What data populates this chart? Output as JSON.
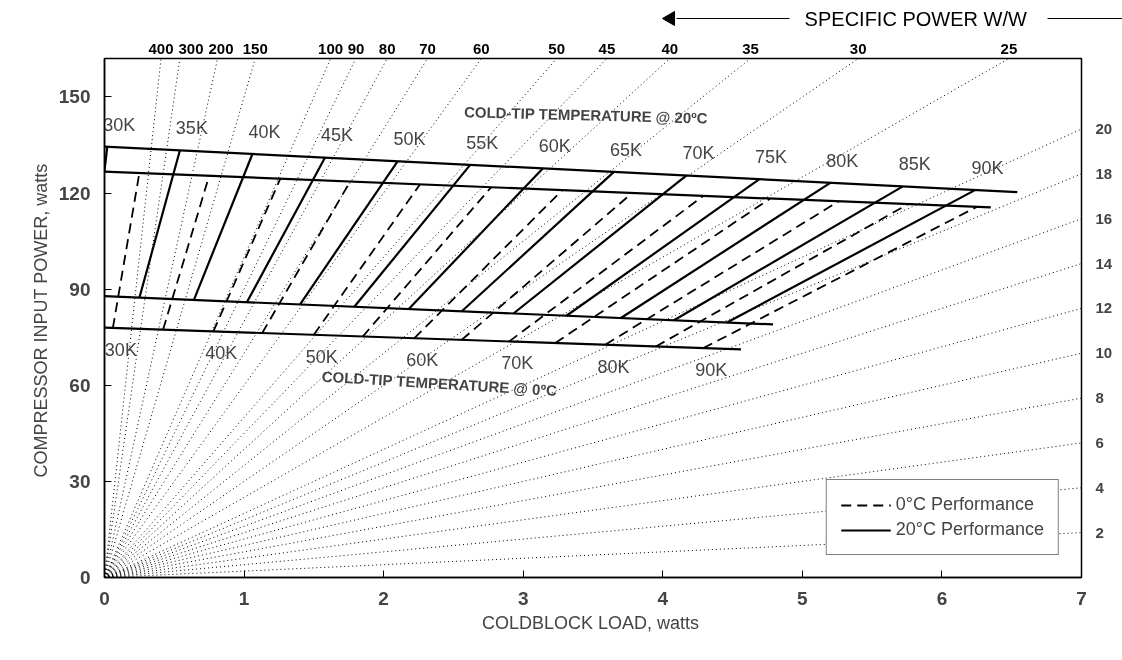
{
  "chart_data": {
    "type": "line",
    "xlabel": "COLDBLOCK LOAD,  watts",
    "ylabel": "COMPRESSOR INPUT POWER,  watts",
    "xlim": [
      0,
      7
    ],
    "ylim": [
      0,
      162
    ],
    "xticks": [
      0,
      1,
      2,
      3,
      4,
      5,
      6,
      7
    ],
    "yticks": [
      0,
      30,
      60,
      90,
      120,
      150
    ],
    "grid": false,
    "legend": "bottom right",
    "series": [
      {
        "color": "#000000",
        "line_style": "dotted",
        "x": [
          0,
          0.405
        ],
        "values": [
          0,
          162
        ]
      },
      {
        "color": "#000000",
        "line_style": "dotted",
        "x": [
          0,
          0.54
        ],
        "values": [
          0,
          162
        ]
      },
      {
        "color": "#000000",
        "line_style": "dotted",
        "x": [
          0,
          0.81
        ],
        "values": [
          0,
          162
        ]
      },
      {
        "color": "#000000",
        "line_style": "dotted",
        "x": [
          0,
          1.08
        ],
        "values": [
          0,
          162
        ]
      },
      {
        "color": "#000000",
        "line_style": "dotted",
        "x": [
          0,
          1.62
        ],
        "values": [
          0,
          162
        ]
      },
      {
        "color": "#000000",
        "line_style": "dotted",
        "x": [
          0,
          1.8
        ],
        "values": [
          0,
          162
        ]
      },
      {
        "color": "#000000",
        "line_style": "dotted",
        "x": [
          0,
          2.025
        ],
        "values": [
          0,
          162
        ]
      },
      {
        "color": "#000000",
        "line_style": "dotted",
        "x": [
          0,
          2.314
        ],
        "values": [
          0,
          162
        ]
      },
      {
        "color": "#000000",
        "line_style": "dotted",
        "x": [
          0,
          2.7
        ],
        "values": [
          0,
          162
        ]
      },
      {
        "color": "#000000",
        "line_style": "dotted",
        "x": [
          0,
          3.24
        ],
        "values": [
          0,
          162
        ]
      },
      {
        "color": "#000000",
        "line_style": "dotted",
        "x": [
          0,
          3.6
        ],
        "values": [
          0,
          162
        ]
      },
      {
        "color": "#000000",
        "line_style": "dotted",
        "x": [
          0,
          4.05
        ],
        "values": [
          0,
          162
        ]
      },
      {
        "color": "#000000",
        "line_style": "dotted",
        "x": [
          0,
          4.629
        ],
        "values": [
          0,
          162
        ]
      },
      {
        "color": "#000000",
        "line_style": "dotted",
        "x": [
          0,
          5.4
        ],
        "values": [
          0,
          162
        ]
      },
      {
        "color": "#000000",
        "line_style": "dotted",
        "x": [
          0,
          6.48
        ],
        "values": [
          0,
          162
        ]
      },
      {
        "color": "#000000",
        "line_style": "dotted",
        "x": [
          0,
          7
        ],
        "values": [
          0,
          140
        ]
      },
      {
        "color": "#000000",
        "line_style": "dotted",
        "x": [
          0,
          7
        ],
        "values": [
          0,
          126
        ]
      },
      {
        "color": "#000000",
        "line_style": "dotted",
        "x": [
          0,
          7
        ],
        "values": [
          0,
          112
        ]
      },
      {
        "color": "#000000",
        "line_style": "dotted",
        "x": [
          0,
          7
        ],
        "values": [
          0,
          98
        ]
      },
      {
        "color": "#000000",
        "line_style": "dotted",
        "x": [
          0,
          7
        ],
        "values": [
          0,
          84
        ]
      },
      {
        "color": "#000000",
        "line_style": "dotted",
        "x": [
          0,
          7
        ],
        "values": [
          0,
          70
        ]
      },
      {
        "color": "#000000",
        "line_style": "dotted",
        "x": [
          0,
          7
        ],
        "values": [
          0,
          56
        ]
      },
      {
        "color": "#000000",
        "line_style": "dotted",
        "x": [
          0,
          7
        ],
        "values": [
          0,
          42
        ]
      },
      {
        "color": "#000000",
        "line_style": "dotted",
        "x": [
          0,
          7
        ],
        "values": [
          0,
          28
        ]
      },
      {
        "color": "#000000",
        "line_style": "dotted",
        "x": [
          0,
          7
        ],
        "values": [
          0,
          14
        ]
      },
      {
        "color": "#000000",
        "line_style": "solid",
        "x": [
          0,
          6.54
        ],
        "values": [
          134.5,
          120.3
        ]
      },
      {
        "color": "#000000",
        "line_style": "solid",
        "x": [
          0,
          4.79
        ],
        "values": [
          87.8,
          79.0
        ]
      },
      {
        "color": "#000000",
        "line_style": "solid",
        "x": [
          0,
          6.35
        ],
        "values": [
          126.7,
          115.5
        ]
      },
      {
        "color": "#000000",
        "line_style": "solid",
        "x": [
          0,
          4.56
        ],
        "values": [
          78.0,
          71.2
        ]
      },
      {
        "name": "0°C Performance",
        "color": "#000000",
        "line_style": "dashed",
        "x": [
          0.06,
          0.25
        ],
        "values": [
          77.9,
          126.3
        ]
      },
      {
        "color": "#000000",
        "line_style": "dashed",
        "x": [
          0.42,
          0.75
        ],
        "values": [
          77.4,
          125.4
        ]
      },
      {
        "color": "#000000",
        "line_style": "dashed",
        "x": [
          0.78,
          1.26
        ],
        "values": [
          76.8,
          124.5
        ]
      },
      {
        "color": "#000000",
        "line_style": "dashed",
        "x": [
          1.13,
          1.76
        ],
        "values": [
          76.3,
          123.6
        ]
      },
      {
        "color": "#000000",
        "line_style": "dashed",
        "x": [
          1.5,
          2.26
        ],
        "values": [
          75.8,
          122.7
        ]
      },
      {
        "color": "#000000",
        "line_style": "dashed",
        "x": [
          1.85,
          2.77
        ],
        "values": [
          75.2,
          121.8
        ]
      },
      {
        "color": "#000000",
        "line_style": "dashed",
        "x": [
          2.22,
          3.28
        ],
        "values": [
          74.7,
          120.9
        ]
      },
      {
        "color": "#000000",
        "line_style": "dashed",
        "x": [
          2.56,
          3.78
        ],
        "values": [
          74.2,
          120.0
        ]
      },
      {
        "color": "#000000",
        "line_style": "dashed",
        "x": [
          2.9,
          4.29
        ],
        "values": [
          73.7,
          119.1
        ]
      },
      {
        "color": "#000000",
        "line_style": "dashed",
        "x": [
          3.23,
          4.77
        ],
        "values": [
          73.2,
          118.3
        ]
      },
      {
        "color": "#000000",
        "line_style": "dashed",
        "x": [
          3.59,
          5.26
        ],
        "values": [
          72.7,
          117.4
        ]
      },
      {
        "color": "#000000",
        "line_style": "dashed",
        "x": [
          3.95,
          5.76
        ],
        "values": [
          72.1,
          116.6
        ]
      },
      {
        "color": "#000000",
        "line_style": "dashed",
        "x": [
          4.29,
          6.25
        ],
        "values": [
          71.6,
          115.7
        ]
      },
      {
        "name": "20°C Performance",
        "color": "#000000",
        "line_style": "solid",
        "x": [
          0.0,
          0.02
        ],
        "values": [
          127.0,
          134.5
        ]
      },
      {
        "color": "#000000",
        "line_style": "solid",
        "x": [
          0.25,
          0.54
        ],
        "values": [
          87.3,
          133.3
        ]
      },
      {
        "color": "#000000",
        "line_style": "solid",
        "x": [
          0.64,
          1.06
        ],
        "values": [
          86.6,
          132.2
        ]
      },
      {
        "color": "#000000",
        "line_style": "solid",
        "x": [
          1.02,
          1.58
        ],
        "values": [
          85.9,
          131.1
        ]
      },
      {
        "color": "#000000",
        "line_style": "solid",
        "x": [
          1.4,
          2.1
        ],
        "values": [
          85.2,
          129.9
        ]
      },
      {
        "color": "#000000",
        "line_style": "solid",
        "x": [
          1.79,
          2.62
        ],
        "values": [
          84.5,
          128.8
        ]
      },
      {
        "color": "#000000",
        "line_style": "solid",
        "x": [
          2.18,
          3.14
        ],
        "values": [
          83.8,
          127.7
        ]
      },
      {
        "color": "#000000",
        "line_style": "solid",
        "x": [
          2.56,
          3.65
        ],
        "values": [
          83.1,
          126.6
        ]
      },
      {
        "color": "#000000",
        "line_style": "solid",
        "x": [
          2.93,
          4.17
        ],
        "values": [
          82.4,
          125.5
        ]
      },
      {
        "color": "#000000",
        "line_style": "solid",
        "x": [
          3.31,
          4.69
        ],
        "values": [
          81.7,
          124.3
        ]
      },
      {
        "color": "#000000",
        "line_style": "solid",
        "x": [
          3.7,
          5.2
        ],
        "values": [
          81.0,
          123.2
        ]
      },
      {
        "color": "#000000",
        "line_style": "solid",
        "x": [
          4.08,
          5.72
        ],
        "values": [
          80.3,
          122.1
        ]
      },
      {
        "color": "#000000",
        "line_style": "solid",
        "x": [
          4.46,
          6.24
        ],
        "values": [
          79.6,
          121.0
        ]
      }
    ],
    "annotations": [
      "SPECIFIC POWER  W/W",
      {
        "text": "400",
        "x": 0.405,
        "y": 162
      },
      {
        "text": "300",
        "x": 0.54,
        "y": 162
      },
      {
        "text": "200",
        "x": 0.81,
        "y": 162
      },
      {
        "text": "150",
        "x": 1.08,
        "y": 162
      },
      {
        "text": "100",
        "x": 1.62,
        "y": 162
      },
      {
        "text": "90",
        "x": 1.8,
        "y": 162
      },
      {
        "text": "80",
        "x": 2.025,
        "y": 162
      },
      {
        "text": "70",
        "x": 2.314,
        "y": 162
      },
      {
        "text": "60",
        "x": 2.7,
        "y": 162
      },
      {
        "text": "50",
        "x": 3.24,
        "y": 162
      },
      {
        "text": "45",
        "x": 3.6,
        "y": 162
      },
      {
        "text": "40",
        "x": 4.05,
        "y": 162
      },
      {
        "text": "35",
        "x": 4.629,
        "y": 162
      },
      {
        "text": "30",
        "x": 5.4,
        "y": 162
      },
      {
        "text": "25",
        "x": 6.48,
        "y": 162
      },
      {
        "text": "20",
        "x": 7,
        "y": 140
      },
      {
        "text": "18",
        "x": 7,
        "y": 126
      },
      {
        "text": "16",
        "x": 7,
        "y": 112
      },
      {
        "text": "14",
        "x": 7,
        "y": 98
      },
      {
        "text": "12",
        "x": 7,
        "y": 84
      },
      {
        "text": "10",
        "x": 7,
        "y": 70
      },
      {
        "text": "8",
        "x": 7,
        "y": 56
      },
      {
        "text": "6",
        "x": 7,
        "y": 42
      },
      {
        "text": "4",
        "x": 7,
        "y": 28
      },
      {
        "text": "2",
        "x": 7,
        "y": 14
      },
      "COLD-TIP TEMPERATURE @ 20ºC",
      "COLD-TIP TEMPERATURE @ 0ºC",
      {
        "text": "30K",
        "x": 0.02,
        "y": 134.5
      },
      {
        "text": "35K",
        "x": 0.54,
        "y": 133.3
      },
      {
        "text": "40K",
        "x": 1.06,
        "y": 132.2
      },
      {
        "text": "45K",
        "x": 1.58,
        "y": 131.1
      },
      {
        "text": "50K",
        "x": 2.1,
        "y": 129.9
      },
      {
        "text": "55K",
        "x": 2.62,
        "y": 128.8
      },
      {
        "text": "60K",
        "x": 3.14,
        "y": 127.7
      },
      {
        "text": "65K",
        "x": 3.65,
        "y": 126.6
      },
      {
        "text": "70K",
        "x": 4.17,
        "y": 125.5
      },
      {
        "text": "75K",
        "x": 4.69,
        "y": 124.3
      },
      {
        "text": "80K",
        "x": 5.2,
        "y": 123.2
      },
      {
        "text": "85K",
        "x": 5.72,
        "y": 122.1
      },
      {
        "text": "90K",
        "x": 6.24,
        "y": 121.0
      },
      {
        "text": "30K",
        "x": 0.06,
        "y": 77.9
      },
      {
        "text": "40K",
        "x": 0.78,
        "y": 76.8
      },
      {
        "text": "50K",
        "x": 1.5,
        "y": 75.8
      },
      {
        "text": "60K",
        "x": 2.22,
        "y": 74.7
      },
      {
        "text": "70K",
        "x": 2.9,
        "y": 73.7
      },
      {
        "text": "80K",
        "x": 3.59,
        "y": 72.7
      },
      {
        "text": "90K",
        "x": 4.29,
        "y": 71.6
      }
    ]
  }
}
